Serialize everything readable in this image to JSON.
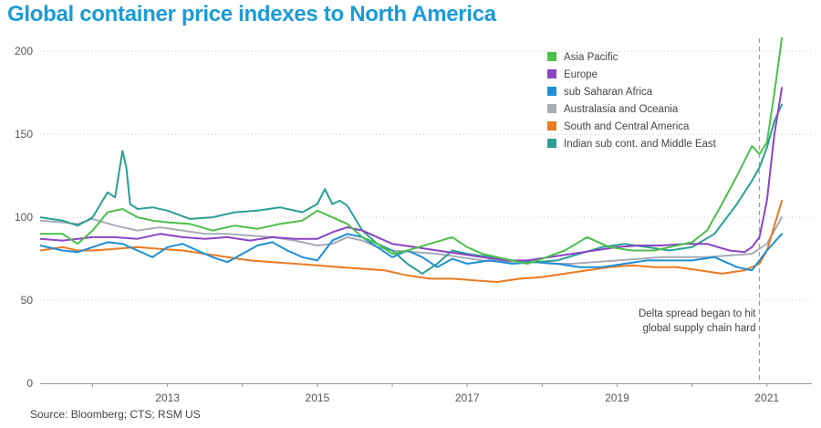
{
  "header": {
    "title": "Global container price indexes to North America"
  },
  "footer": {
    "source": "Source: Bloomberg; CTS; RSM US"
  },
  "chart_data": {
    "type": "line",
    "title": "Global container price indexes to North America",
    "xlabel": "",
    "ylabel": "",
    "xlim": [
      2011.3,
      2021.6
    ],
    "ylim": [
      0,
      210
    ],
    "y_ticks": [
      0,
      50,
      100,
      150,
      200
    ],
    "x_ticks": [
      2013,
      2015,
      2017,
      2019,
      2021
    ],
    "grid": "horizontal-dotted",
    "legend_position": "top-right",
    "colors": {
      "Asia Pacific": "#4cbf4a",
      "Europe": "#8c43c6",
      "sub Saharan Africa": "#1e8fd6",
      "Australasia and Oceania": "#a5acb6",
      "South and Central America": "#ea7a22",
      "Indian sub cont. and Middle East": "#2a9f94"
    },
    "annotation": {
      "x": 2020.9,
      "lines": [
        "Delta spread began to hit",
        "global supply chain hard"
      ]
    },
    "series": [
      {
        "name": "Asia Pacific",
        "x": [
          2011.3,
          2011.6,
          2011.8,
          2012.0,
          2012.2,
          2012.4,
          2012.6,
          2012.8,
          2013.0,
          2013.3,
          2013.6,
          2013.9,
          2014.2,
          2014.5,
          2014.8,
          2015.0,
          2015.2,
          2015.4,
          2015.6,
          2015.8,
          2016.0,
          2016.2,
          2016.5,
          2016.8,
          2017.0,
          2017.2,
          2017.5,
          2017.8,
          2018.0,
          2018.3,
          2018.6,
          2018.9,
          2019.2,
          2019.5,
          2019.8,
          2020.0,
          2020.2,
          2020.4,
          2020.6,
          2020.8,
          2020.9,
          2021.0,
          2021.1,
          2021.2
        ],
        "y": [
          90,
          90,
          84,
          92,
          103,
          105,
          100,
          98,
          97,
          96,
          92,
          95,
          93,
          96,
          98,
          104,
          100,
          96,
          88,
          84,
          78,
          80,
          84,
          88,
          82,
          78,
          75,
          72,
          75,
          80,
          88,
          82,
          80,
          80,
          83,
          85,
          92,
          108,
          125,
          143,
          138,
          145,
          175,
          208
        ]
      },
      {
        "name": "Europe",
        "x": [
          2011.3,
          2011.6,
          2011.8,
          2012.0,
          2012.3,
          2012.6,
          2012.9,
          2013.2,
          2013.5,
          2013.8,
          2014.1,
          2014.4,
          2014.7,
          2015.0,
          2015.2,
          2015.4,
          2015.6,
          2015.8,
          2016.0,
          2016.3,
          2016.6,
          2016.9,
          2017.2,
          2017.5,
          2017.8,
          2018.1,
          2018.4,
          2018.7,
          2019.0,
          2019.3,
          2019.6,
          2019.9,
          2020.2,
          2020.5,
          2020.7,
          2020.8,
          2020.9,
          2021.0,
          2021.1,
          2021.2
        ],
        "y": [
          87,
          86,
          87,
          88,
          88,
          87,
          90,
          88,
          87,
          88,
          86,
          88,
          87,
          87,
          91,
          94,
          92,
          88,
          84,
          82,
          80,
          78,
          76,
          74,
          74,
          76,
          78,
          80,
          82,
          83,
          83,
          84,
          84,
          80,
          79,
          82,
          88,
          110,
          150,
          178
        ]
      },
      {
        "name": "sub Saharan Africa",
        "x": [
          2011.3,
          2011.6,
          2011.8,
          2012.0,
          2012.2,
          2012.4,
          2012.6,
          2012.8,
          2013.0,
          2013.2,
          2013.4,
          2013.6,
          2013.8,
          2014.0,
          2014.2,
          2014.4,
          2014.6,
          2014.8,
          2015.0,
          2015.2,
          2015.4,
          2015.6,
          2015.8,
          2016.0,
          2016.2,
          2016.4,
          2016.6,
          2016.8,
          2017.0,
          2017.3,
          2017.6,
          2017.9,
          2018.2,
          2018.5,
          2018.8,
          2019.1,
          2019.4,
          2019.7,
          2020.0,
          2020.3,
          2020.6,
          2020.8,
          2021.0,
          2021.2
        ],
        "y": [
          83,
          80,
          79,
          82,
          85,
          84,
          80,
          76,
          82,
          84,
          80,
          76,
          73,
          78,
          83,
          85,
          80,
          76,
          74,
          86,
          90,
          88,
          82,
          76,
          80,
          76,
          70,
          75,
          72,
          74,
          72,
          73,
          72,
          70,
          70,
          72,
          74,
          74,
          74,
          76,
          70,
          68,
          80,
          90
        ]
      },
      {
        "name": "Australasia and Oceania",
        "x": [
          2011.3,
          2011.6,
          2011.8,
          2012.0,
          2012.3,
          2012.6,
          2012.9,
          2013.2,
          2013.5,
          2013.8,
          2014.1,
          2014.4,
          2014.7,
          2015.0,
          2015.2,
          2015.4,
          2015.6,
          2015.8,
          2016.0,
          2016.3,
          2016.6,
          2016.9,
          2017.2,
          2017.5,
          2017.8,
          2018.1,
          2018.4,
          2018.7,
          2019.0,
          2019.3,
          2019.6,
          2019.9,
          2020.2,
          2020.5,
          2020.8,
          2021.0,
          2021.2
        ],
        "y": [
          98,
          97,
          96,
          99,
          95,
          92,
          94,
          92,
          90,
          90,
          89,
          88,
          86,
          83,
          84,
          88,
          86,
          82,
          80,
          79,
          78,
          76,
          74,
          73,
          74,
          72,
          72,
          73,
          74,
          75,
          76,
          76,
          76,
          77,
          78,
          84,
          100
        ]
      },
      {
        "name": "South and Central America",
        "x": [
          2011.3,
          2011.6,
          2011.8,
          2012.0,
          2012.3,
          2012.6,
          2012.9,
          2013.2,
          2013.5,
          2013.8,
          2014.1,
          2014.4,
          2014.7,
          2015.0,
          2015.3,
          2015.6,
          2015.9,
          2016.2,
          2016.5,
          2016.8,
          2017.1,
          2017.4,
          2017.7,
          2018.0,
          2018.3,
          2018.6,
          2018.9,
          2019.2,
          2019.5,
          2019.8,
          2020.1,
          2020.4,
          2020.7,
          2020.9,
          2021.0,
          2021.1,
          2021.2
        ],
        "y": [
          80,
          82,
          80,
          80,
          81,
          82,
          81,
          80,
          78,
          76,
          74,
          73,
          72,
          71,
          70,
          69,
          68,
          65,
          63,
          63,
          62,
          61,
          63,
          64,
          66,
          68,
          70,
          71,
          70,
          70,
          68,
          66,
          68,
          72,
          80,
          95,
          110
        ]
      },
      {
        "name": "Indian sub cont. and Middle East",
        "x": [
          2011.3,
          2011.6,
          2011.8,
          2012.0,
          2012.2,
          2012.3,
          2012.4,
          2012.45,
          2012.5,
          2012.6,
          2012.8,
          2013.0,
          2013.3,
          2013.6,
          2013.9,
          2014.2,
          2014.5,
          2014.8,
          2015.0,
          2015.1,
          2015.2,
          2015.3,
          2015.4,
          2015.6,
          2015.8,
          2016.0,
          2016.2,
          2016.4,
          2016.6,
          2016.8,
          2017.0,
          2017.3,
          2017.6,
          2017.9,
          2018.2,
          2018.5,
          2018.8,
          2019.1,
          2019.4,
          2019.7,
          2020.0,
          2020.3,
          2020.6,
          2020.8,
          2020.9,
          2021.0,
          2021.1,
          2021.2
        ],
        "y": [
          100,
          98,
          95,
          100,
          115,
          112,
          140,
          130,
          108,
          105,
          106,
          104,
          99,
          100,
          103,
          104,
          106,
          103,
          108,
          117,
          108,
          110,
          107,
          92,
          84,
          80,
          72,
          66,
          72,
          80,
          78,
          76,
          74,
          73,
          74,
          78,
          82,
          84,
          82,
          80,
          82,
          90,
          108,
          122,
          130,
          142,
          158,
          168
        ]
      }
    ]
  }
}
